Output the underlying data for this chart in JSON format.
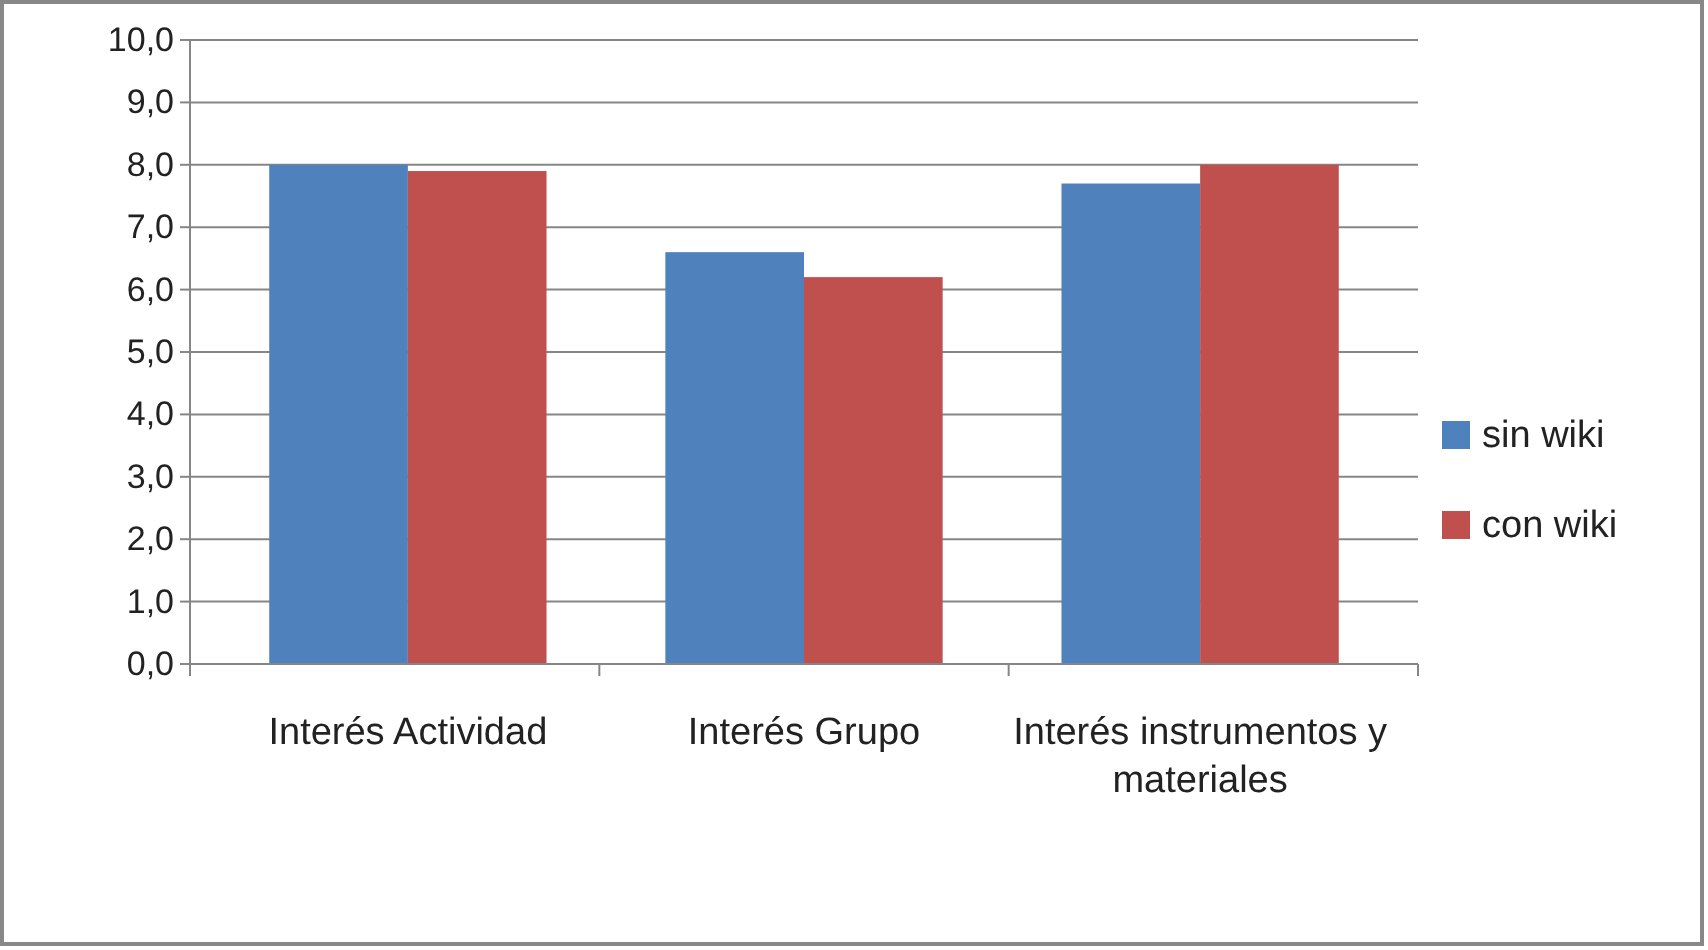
{
  "chart_data": {
    "type": "bar",
    "categories": [
      "Interés Actividad",
      "Interés Grupo",
      "Interés instrumentos y materiales"
    ],
    "series": [
      {
        "name": "sin wiki",
        "color": "#4f81bd",
        "values": [
          8.0,
          6.6,
          7.7
        ]
      },
      {
        "name": "con wiki",
        "color": "#c0504d",
        "values": [
          7.9,
          6.2,
          8.0
        ]
      }
    ],
    "ylim": [
      0,
      10
    ],
    "yticks": [
      {
        "value": 0,
        "label": "0,0"
      },
      {
        "value": 1,
        "label": "1,0"
      },
      {
        "value": 2,
        "label": "2,0"
      },
      {
        "value": 3,
        "label": "3,0"
      },
      {
        "value": 4,
        "label": "4,0"
      },
      {
        "value": 5,
        "label": "5,0"
      },
      {
        "value": 6,
        "label": "6,0"
      },
      {
        "value": 7,
        "label": "7,0"
      },
      {
        "value": 8,
        "label": "8,0"
      },
      {
        "value": 9,
        "label": "9,0"
      },
      {
        "value": 10,
        "label": "10,0"
      }
    ],
    "grid": "y",
    "legend": "right"
  }
}
